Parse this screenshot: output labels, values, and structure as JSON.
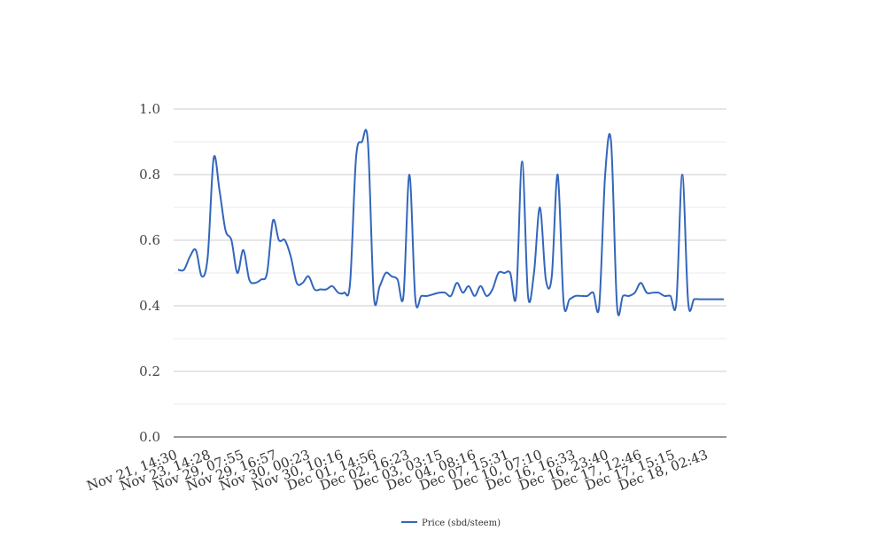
{
  "chart_data": {
    "type": "line",
    "title": "",
    "xlabel": "",
    "ylabel": "",
    "ylim": [
      0,
      1.0
    ],
    "yticks": [
      "0.0",
      "0.2",
      "0.4",
      "0.6",
      "0.8",
      "1.0"
    ],
    "grid": true,
    "legend_position": "bottom",
    "line_color": "#3366bb",
    "x_tick_labels": [
      "Nov 21, 14:30",
      "Nov 23, 14:28",
      "Nov 29, 07:55",
      "Nov 29, 16:57",
      "Nov 30, 00:23",
      "Nov 30, 10:16",
      "Dec 01, 14:56",
      "Dec 02, 16:23",
      "Dec 03, 03:15",
      "Dec 04, 08:16",
      "Dec 07, 15:31",
      "Dec 10, 07:10",
      "Dec 16, 16:33",
      "Dec 16, 23:40",
      "Dec 17, 12:46",
      "Dec 17, 15:15",
      "Dec 18, 02:43"
    ],
    "series": [
      {
        "name": "Price (sbd/steem)",
        "values": [
          0.51,
          0.51,
          0.55,
          0.57,
          0.49,
          0.55,
          0.85,
          0.75,
          0.63,
          0.6,
          0.5,
          0.57,
          0.48,
          0.47,
          0.48,
          0.5,
          0.66,
          0.6,
          0.6,
          0.55,
          0.47,
          0.47,
          0.49,
          0.45,
          0.45,
          0.45,
          0.46,
          0.44,
          0.44,
          0.47,
          0.85,
          0.9,
          0.9,
          0.43,
          0.46,
          0.5,
          0.49,
          0.48,
          0.43,
          0.8,
          0.42,
          0.43,
          0.43,
          0.435,
          0.44,
          0.44,
          0.43,
          0.47,
          0.44,
          0.46,
          0.43,
          0.46,
          0.43,
          0.45,
          0.5,
          0.5,
          0.5,
          0.43,
          0.84,
          0.43,
          0.5,
          0.7,
          0.48,
          0.49,
          0.8,
          0.41,
          0.42,
          0.43,
          0.43,
          0.43,
          0.44,
          0.4,
          0.8,
          0.9,
          0.4,
          0.43,
          0.43,
          0.44,
          0.47,
          0.44,
          0.44,
          0.44,
          0.43,
          0.43,
          0.41,
          0.8,
          0.41,
          0.42,
          0.42,
          0.42,
          0.42,
          0.42,
          0.42
        ]
      }
    ]
  }
}
